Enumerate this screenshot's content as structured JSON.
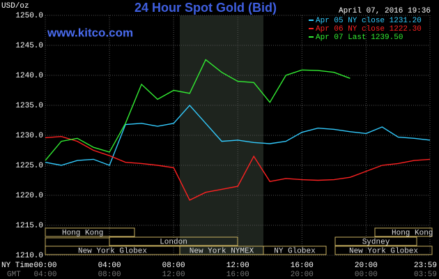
{
  "chart_data": {
    "type": "line",
    "title": "24 Hour Spot Gold (Bid)",
    "timestamp": "April 07, 2016 19:36",
    "watermark": "www.kitco.com",
    "y_label": "USD/oz",
    "x_label": "NY Time",
    "x2_label": "GMT",
    "x": [
      0,
      1,
      2,
      3,
      4,
      5,
      6,
      7,
      8,
      9,
      10,
      11,
      12,
      13,
      14,
      15,
      16,
      17,
      18,
      19,
      20,
      21,
      22,
      23,
      23.98
    ],
    "series": [
      {
        "name": "Apr 05 NY close 1231.20",
        "color": "#33ccff",
        "values": [
          1225.5,
          1225,
          1225.8,
          1226,
          1225,
          1231.8,
          1232,
          1231.5,
          1232,
          1235,
          1232,
          1229,
          1229.2,
          1228.8,
          1228.6,
          1229,
          1230.5,
          1231.2,
          1231,
          1230.6,
          1230.3,
          1231.4,
          1229.7,
          1229.5,
          1229.2
        ]
      },
      {
        "name": "Apr 06 NY close 1222.30",
        "color": "#ff2222",
        "values": [
          1229.6,
          1229.8,
          1229,
          1227.5,
          1226.6,
          1225.5,
          1225.3,
          1225,
          1224.6,
          1219.2,
          1220.5,
          1221,
          1221.5,
          1226.5,
          1222.3,
          1222.8,
          1222.6,
          1222.5,
          1222.6,
          1223,
          1224,
          1225,
          1225.3,
          1225.8,
          1226
        ]
      },
      {
        "name": "Apr 07 Last 1239.50",
        "color": "#33ee33",
        "values": [
          1225.8,
          1229,
          1229.5,
          1228,
          1227.2,
          1232,
          1238.5,
          1236,
          1237.5,
          1237,
          1242.6,
          1240.5,
          1239,
          1238.8,
          1235.5,
          1240,
          1240.9,
          1240.8,
          1240.5,
          1239.5,
          null,
          null,
          null,
          null,
          null
        ]
      }
    ],
    "xlim": [
      0,
      23.98
    ],
    "xticks": [
      {
        "value": 0,
        "label": "00:00"
      },
      {
        "value": 4,
        "label": "04:00"
      },
      {
        "value": 8,
        "label": "08:00"
      },
      {
        "value": 12,
        "label": "12:00"
      },
      {
        "value": 16,
        "label": "16:00"
      },
      {
        "value": 20,
        "label": "20:00"
      },
      {
        "value": 23.98,
        "label": "23:59"
      }
    ],
    "gmt_labels": [
      "04:00",
      "08:00",
      "12:00",
      "16:00",
      "20:00",
      "00:00",
      "03:59"
    ],
    "ylim": [
      1210,
      1250
    ],
    "yticks": [
      {
        "value": 1210,
        "label": "1210.0"
      },
      {
        "value": 1215,
        "label": "1215.0"
      },
      {
        "value": 1220,
        "label": "1220.0"
      },
      {
        "value": 1225,
        "label": "1225.0"
      },
      {
        "value": 1230,
        "label": "1230.0"
      },
      {
        "value": 1235,
        "label": "1235.0"
      },
      {
        "value": 1240,
        "label": "1240.0"
      },
      {
        "value": 1245,
        "label": "1245.0"
      },
      {
        "value": 1250,
        "label": "1250.0"
      }
    ],
    "grid": true,
    "sessions": [
      "Hong Kong",
      "Hong Kong",
      "London",
      "Sydney",
      "New York Globex",
      "New York NYMEX",
      "NY Globex",
      "New York Globex"
    ]
  }
}
